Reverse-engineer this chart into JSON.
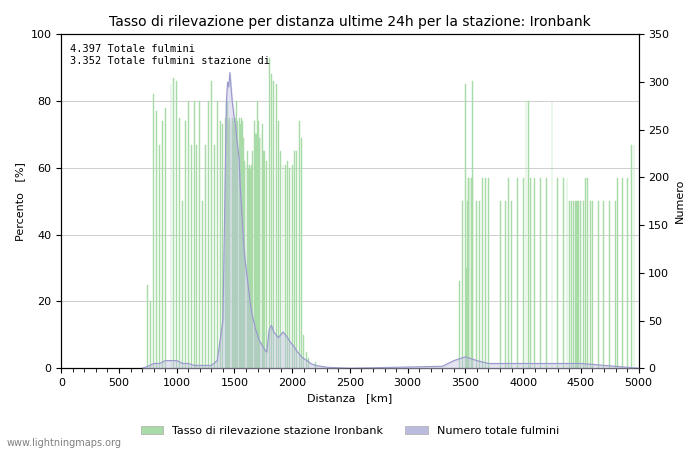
{
  "title": "Tasso di rilevazione per distanza ultime 24h per la stazione: Ironbank",
  "xlabel": "Distanza   [km]",
  "ylabel_left": "Percento   [%]",
  "ylabel_right": "Numero",
  "annotation_line1": "4.397 Totale fulmini",
  "annotation_line2": "3.352 Totale fulmini stazione di",
  "legend_label1": "Tasso di rilevazione stazione Ironbank",
  "legend_label2": "Numero totale fulmini",
  "watermark": "www.lightningmaps.org",
  "xlim": [
    0,
    5000
  ],
  "ylim_left": [
    0,
    100
  ],
  "ylim_right": [
    0,
    350
  ],
  "xticks": [
    0,
    500,
    1000,
    1500,
    2000,
    2500,
    3000,
    3500,
    4000,
    4500,
    5000
  ],
  "yticks_left": [
    0,
    20,
    40,
    60,
    80,
    100
  ],
  "yticks_right": [
    0,
    50,
    100,
    150,
    200,
    250,
    300,
    350
  ],
  "bar_color": "#a8dba8",
  "bar_edge_color": "#a8dba8",
  "line_color": "#9999cc",
  "line_fill_color": "#bbbbdd",
  "background_color": "#ffffff",
  "grid_color": "#bbbbbb",
  "title_fontsize": 10,
  "label_fontsize": 8,
  "tick_fontsize": 8,
  "green_bars": [
    [
      750,
      25
    ],
    [
      775,
      20
    ],
    [
      800,
      82
    ],
    [
      825,
      77
    ],
    [
      850,
      67
    ],
    [
      875,
      74
    ],
    [
      900,
      78
    ],
    [
      950,
      85
    ],
    [
      975,
      87
    ],
    [
      1000,
      86
    ],
    [
      1025,
      75
    ],
    [
      1050,
      50
    ],
    [
      1075,
      74
    ],
    [
      1100,
      80
    ],
    [
      1125,
      67
    ],
    [
      1150,
      80
    ],
    [
      1175,
      67
    ],
    [
      1200,
      80
    ],
    [
      1225,
      50
    ],
    [
      1250,
      67
    ],
    [
      1275,
      80
    ],
    [
      1300,
      86
    ],
    [
      1325,
      67
    ],
    [
      1350,
      80
    ],
    [
      1375,
      74
    ],
    [
      1400,
      73
    ],
    [
      1420,
      75
    ],
    [
      1430,
      80
    ],
    [
      1440,
      80
    ],
    [
      1450,
      74
    ],
    [
      1460,
      75
    ],
    [
      1470,
      73
    ],
    [
      1480,
      75
    ],
    [
      1490,
      74
    ],
    [
      1500,
      73
    ],
    [
      1510,
      75
    ],
    [
      1520,
      80
    ],
    [
      1530,
      74
    ],
    [
      1540,
      75
    ],
    [
      1550,
      73
    ],
    [
      1560,
      75
    ],
    [
      1570,
      74
    ],
    [
      1580,
      69
    ],
    [
      1590,
      62
    ],
    [
      1600,
      61
    ],
    [
      1610,
      65
    ],
    [
      1620,
      60
    ],
    [
      1630,
      61
    ],
    [
      1640,
      60
    ],
    [
      1650,
      61
    ],
    [
      1660,
      65
    ],
    [
      1670,
      74
    ],
    [
      1680,
      70
    ],
    [
      1690,
      70
    ],
    [
      1700,
      80
    ],
    [
      1710,
      74
    ],
    [
      1720,
      69
    ],
    [
      1730,
      70
    ],
    [
      1740,
      73
    ],
    [
      1750,
      65
    ],
    [
      1760,
      65
    ],
    [
      1780,
      62
    ],
    [
      1800,
      93
    ],
    [
      1820,
      88
    ],
    [
      1840,
      86
    ],
    [
      1860,
      85
    ],
    [
      1880,
      74
    ],
    [
      1900,
      65
    ],
    [
      1920,
      61
    ],
    [
      1940,
      61
    ],
    [
      1960,
      62
    ],
    [
      1980,
      60
    ],
    [
      2000,
      61
    ],
    [
      2020,
      65
    ],
    [
      2040,
      65
    ],
    [
      2060,
      74
    ],
    [
      2080,
      69
    ],
    [
      2100,
      10
    ],
    [
      2120,
      5
    ],
    [
      2140,
      3
    ],
    [
      2200,
      2
    ],
    [
      3450,
      26
    ],
    [
      3475,
      50
    ],
    [
      3500,
      85
    ],
    [
      3510,
      30
    ],
    [
      3520,
      50
    ],
    [
      3525,
      57
    ],
    [
      3530,
      57
    ],
    [
      3540,
      57
    ],
    [
      3550,
      57
    ],
    [
      3560,
      86
    ],
    [
      3565,
      57
    ],
    [
      3600,
      50
    ],
    [
      3625,
      50
    ],
    [
      3650,
      57
    ],
    [
      3675,
      57
    ],
    [
      3700,
      57
    ],
    [
      3800,
      50
    ],
    [
      3850,
      50
    ],
    [
      3875,
      57
    ],
    [
      3900,
      50
    ],
    [
      3950,
      57
    ],
    [
      4000,
      57
    ],
    [
      4025,
      80
    ],
    [
      4050,
      80
    ],
    [
      4060,
      57
    ],
    [
      4100,
      57
    ],
    [
      4150,
      57
    ],
    [
      4200,
      57
    ],
    [
      4250,
      80
    ],
    [
      4300,
      57
    ],
    [
      4350,
      57
    ],
    [
      4380,
      57
    ],
    [
      4400,
      50
    ],
    [
      4420,
      50
    ],
    [
      4440,
      50
    ],
    [
      4450,
      50
    ],
    [
      4460,
      50
    ],
    [
      4470,
      50
    ],
    [
      4480,
      50
    ],
    [
      4500,
      50
    ],
    [
      4520,
      50
    ],
    [
      4540,
      57
    ],
    [
      4560,
      57
    ],
    [
      4580,
      50
    ],
    [
      4600,
      50
    ],
    [
      4650,
      50
    ],
    [
      4700,
      50
    ],
    [
      4750,
      50
    ],
    [
      4800,
      50
    ],
    [
      4820,
      57
    ],
    [
      4860,
      57
    ],
    [
      4900,
      57
    ],
    [
      4940,
      67
    ],
    [
      4960,
      67
    ]
  ],
  "blue_line_x": [
    700,
    750,
    800,
    850,
    900,
    950,
    1000,
    1050,
    1100,
    1150,
    1200,
    1250,
    1300,
    1350,
    1400,
    1430,
    1440,
    1450,
    1460,
    1470,
    1480,
    1490,
    1500,
    1510,
    1520,
    1530,
    1540,
    1550,
    1560,
    1570,
    1580,
    1590,
    1600,
    1610,
    1620,
    1630,
    1640,
    1650,
    1660,
    1670,
    1680,
    1690,
    1700,
    1710,
    1720,
    1730,
    1740,
    1750,
    1760,
    1770,
    1780,
    1800,
    1820,
    1840,
    1860,
    1880,
    1900,
    1920,
    1940,
    1960,
    1980,
    2000,
    2020,
    2040,
    2060,
    2080,
    2100,
    2130,
    2160,
    2200,
    2300,
    2500,
    3300,
    3350,
    3400,
    3450,
    3500,
    3550,
    3600,
    3700,
    4300,
    4400,
    4500,
    5000
  ],
  "blue_line_y": [
    0,
    2,
    5,
    5,
    8,
    8,
    8,
    5,
    5,
    3,
    3,
    3,
    3,
    8,
    50,
    280,
    300,
    295,
    310,
    295,
    280,
    270,
    260,
    255,
    240,
    230,
    220,
    190,
    170,
    150,
    130,
    115,
    105,
    95,
    85,
    75,
    65,
    58,
    52,
    48,
    42,
    38,
    35,
    30,
    28,
    26,
    24,
    22,
    20,
    18,
    17,
    40,
    45,
    38,
    35,
    32,
    35,
    38,
    35,
    32,
    28,
    25,
    22,
    18,
    15,
    12,
    10,
    8,
    5,
    3,
    1,
    0,
    2,
    5,
    8,
    10,
    12,
    10,
    8,
    5,
    5,
    5,
    5,
    0
  ]
}
